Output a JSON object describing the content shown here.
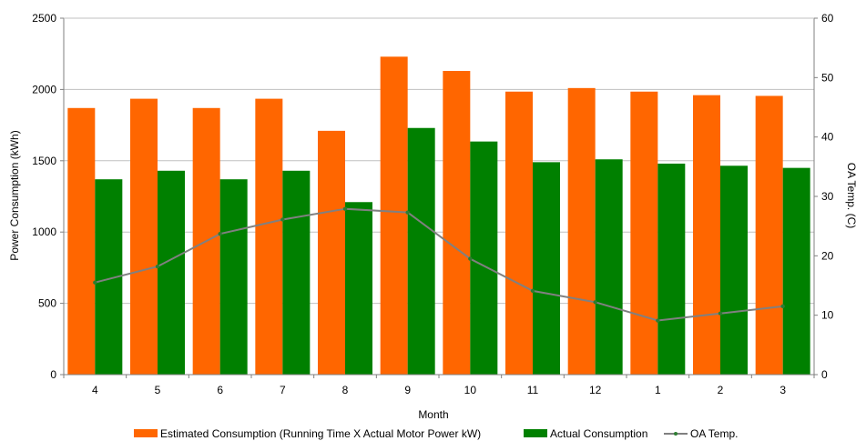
{
  "chart_data": {
    "type": "bar",
    "title": "",
    "xlabel": "Month",
    "ylabel": "Power Consumption (kWh)",
    "y2label": "OA Temp. (C)",
    "ylim": [
      0,
      2500
    ],
    "y2lim": [
      0,
      60
    ],
    "yticks": [
      0,
      500,
      1000,
      1500,
      2000,
      2500
    ],
    "y2ticks": [
      0,
      10,
      20,
      30,
      40,
      50,
      60
    ],
    "grid": true,
    "legend_position": "bottom",
    "categories": [
      "4",
      "5",
      "6",
      "7",
      "8",
      "9",
      "10",
      "11",
      "12",
      "1",
      "2",
      "3"
    ],
    "series": [
      {
        "name": "Estimated Consumption (Running Time X Actual Motor Power kW)",
        "kind": "bar",
        "axis": "left",
        "color": "#FF6600",
        "values": [
          1870,
          1935,
          1870,
          1935,
          1710,
          2230,
          2130,
          1985,
          2010,
          1985,
          1960,
          1955
        ]
      },
      {
        "name": "Actual Consumption",
        "kind": "bar",
        "axis": "left",
        "color": "#008000",
        "values": [
          1370,
          1430,
          1370,
          1430,
          1210,
          1730,
          1635,
          1490,
          1510,
          1480,
          1465,
          1450
        ]
      },
      {
        "name": "OA Temp.",
        "kind": "line",
        "axis": "right",
        "color": "#808080",
        "marker_color": "#2E7D32",
        "values": [
          15.5,
          18.2,
          23.7,
          26.1,
          27.9,
          27.3,
          19.5,
          14.1,
          12.2,
          9.1,
          10.3,
          11.5
        ]
      }
    ]
  }
}
